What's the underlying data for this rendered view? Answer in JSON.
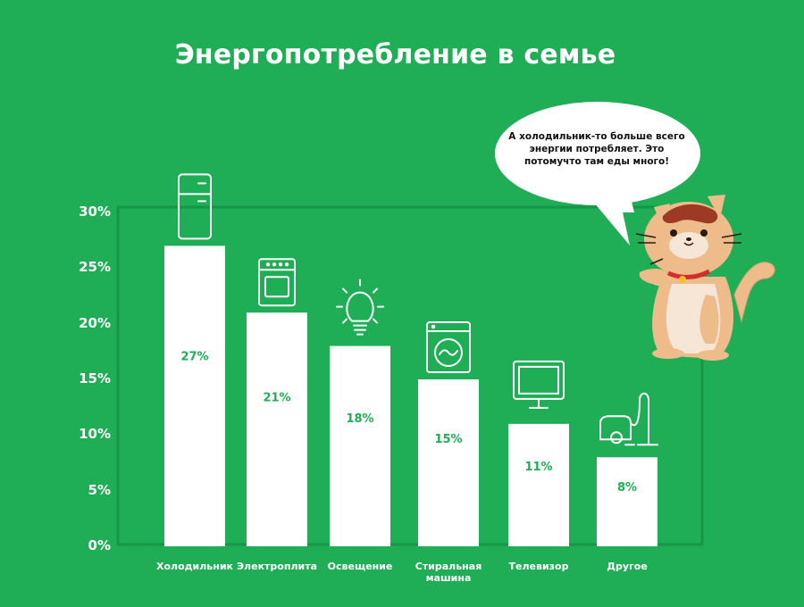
{
  "title": "Энергопотребление в семье",
  "speech_bubble": "А холодильник-то больше всего энергии потребляет. Это потомучто там еды много!",
  "colors": {
    "background": "#1fad55",
    "bar": "#ffffff",
    "label": "#1fad55",
    "text": "#ffffff"
  },
  "chart_data": {
    "type": "bar",
    "title": "Энергопотребление в семье",
    "categories": [
      "Холодильник",
      "Электроплита",
      "Освещение",
      "Стиральная машина",
      "Телевизор",
      "Другое"
    ],
    "values": [
      27,
      21,
      18,
      15,
      11,
      8
    ],
    "value_labels": [
      "27%",
      "21%",
      "18%",
      "15%",
      "11%",
      "8%"
    ],
    "icons": [
      "fridge-icon",
      "stove-icon",
      "lightbulb-icon",
      "washing-machine-icon",
      "tv-icon",
      "vacuum-icon"
    ],
    "ylim": [
      0,
      30
    ],
    "yticks": [
      0,
      5,
      10,
      15,
      20,
      25,
      30
    ],
    "ytick_labels": [
      "0%",
      "5%",
      "10%",
      "15%",
      "20%",
      "25%",
      "30%"
    ],
    "grid": false,
    "xlabel": "",
    "ylabel": ""
  }
}
